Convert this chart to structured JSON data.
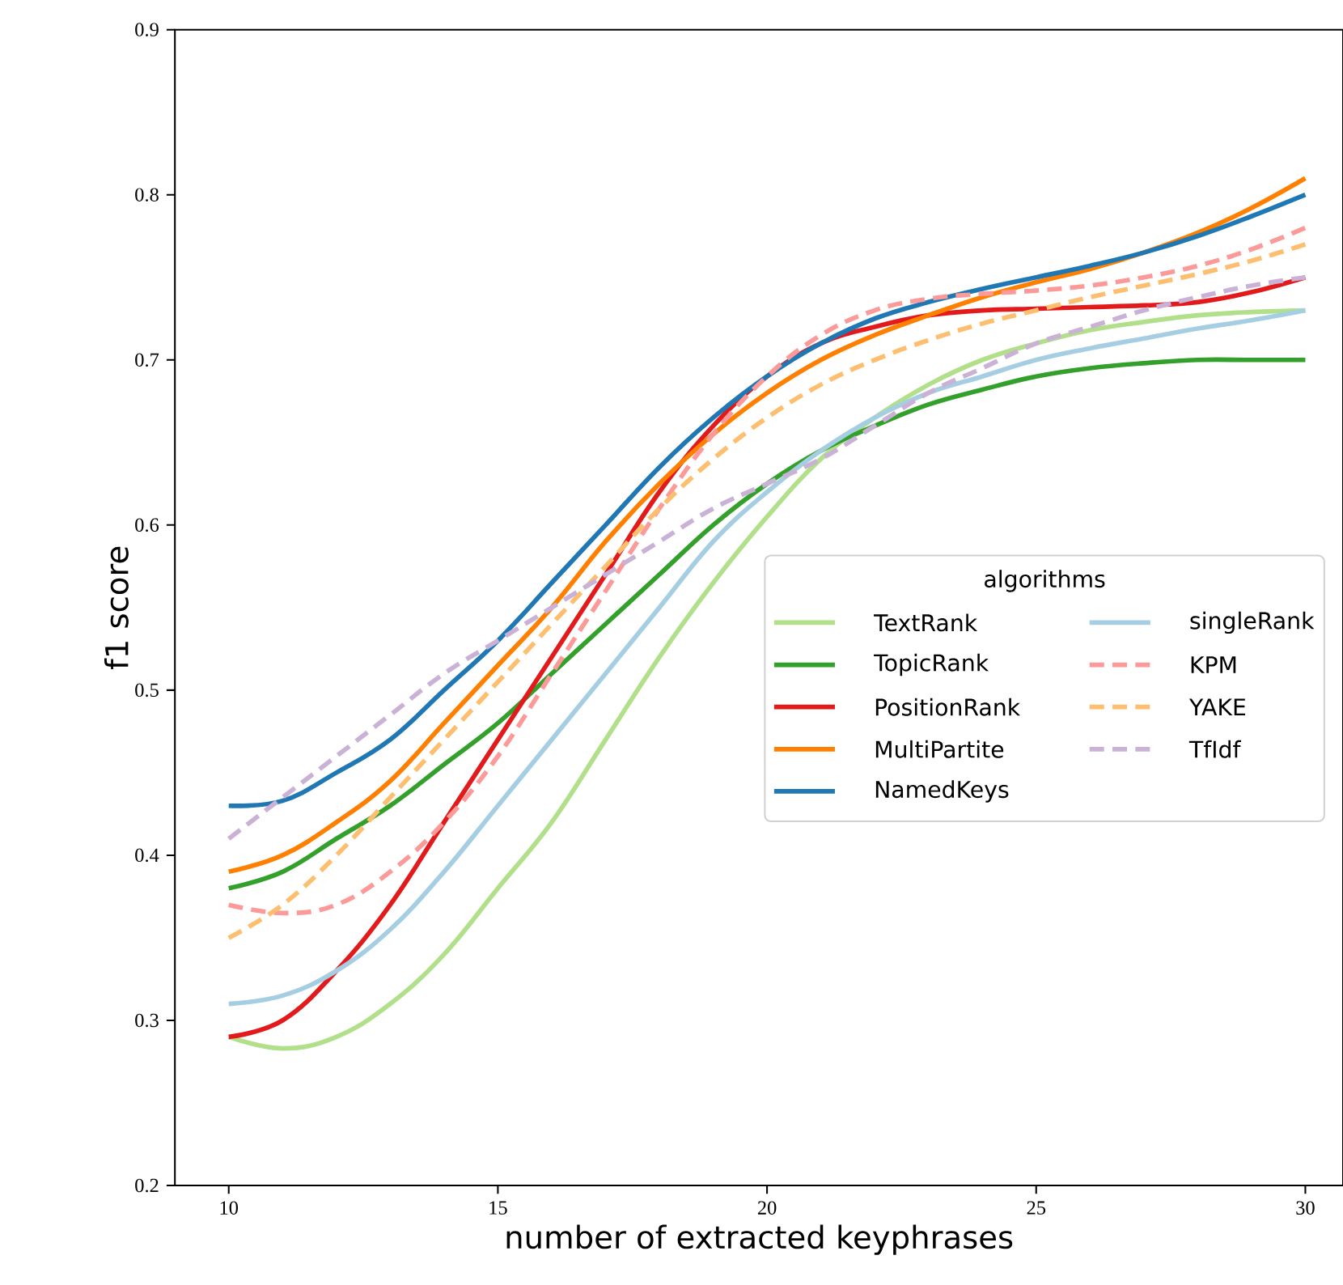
{
  "chart_data": {
    "type": "line",
    "xlabel": "number of extracted keyphrases",
    "ylabel": "f1 score",
    "legend_title": "algorithms",
    "legend": "center right",
    "x": [
      10,
      11,
      12,
      13,
      14,
      15,
      16,
      17,
      18,
      19,
      20,
      21,
      22,
      23,
      24,
      25,
      26,
      27,
      28,
      29,
      30
    ],
    "xlim": [
      9,
      30.7
    ],
    "ylim": [
      0.2,
      0.9
    ],
    "xticks": [
      10,
      15,
      20,
      25,
      30
    ],
    "yticks": [
      0.2,
      0.3,
      0.4,
      0.5,
      0.6,
      0.7,
      0.8,
      0.9
    ],
    "series": [
      {
        "name": "TextRank",
        "color": "#b2df8a",
        "line_style": "solid",
        "values": [
          0.29,
          0.283,
          0.29,
          0.31,
          0.34,
          0.38,
          0.42,
          0.47,
          0.52,
          0.565,
          0.605,
          0.64,
          0.665,
          0.685,
          0.7,
          0.71,
          0.718,
          0.723,
          0.727,
          0.729,
          0.73
        ]
      },
      {
        "name": "TopicRank",
        "color": "#33a02c",
        "line_style": "solid",
        "values": [
          0.38,
          0.39,
          0.41,
          0.43,
          0.455,
          0.48,
          0.51,
          0.54,
          0.57,
          0.6,
          0.625,
          0.645,
          0.66,
          0.673,
          0.682,
          0.69,
          0.695,
          0.698,
          0.7,
          0.7,
          0.7
        ]
      },
      {
        "name": "PositionRank",
        "color": "#e31a1c",
        "line_style": "solid",
        "values": [
          0.29,
          0.3,
          0.33,
          0.37,
          0.42,
          0.47,
          0.52,
          0.57,
          0.62,
          0.66,
          0.69,
          0.71,
          0.72,
          0.727,
          0.73,
          0.731,
          0.732,
          0.733,
          0.735,
          0.741,
          0.75
        ]
      },
      {
        "name": "MultiPartite",
        "color": "#ff7f00",
        "line_style": "solid",
        "values": [
          0.39,
          0.4,
          0.42,
          0.445,
          0.48,
          0.515,
          0.55,
          0.59,
          0.625,
          0.655,
          0.68,
          0.7,
          0.715,
          0.727,
          0.738,
          0.747,
          0.755,
          0.765,
          0.777,
          0.792,
          0.81
        ]
      },
      {
        "name": "NamedKeys",
        "color": "#1f78b4",
        "line_style": "solid",
        "values": [
          0.43,
          0.433,
          0.45,
          0.47,
          0.5,
          0.53,
          0.565,
          0.6,
          0.635,
          0.665,
          0.69,
          0.71,
          0.725,
          0.735,
          0.743,
          0.75,
          0.757,
          0.765,
          0.775,
          0.787,
          0.8
        ]
      },
      {
        "name": "singleRank",
        "color": "#a6cee3",
        "line_style": "solid",
        "values": [
          0.31,
          0.315,
          0.33,
          0.355,
          0.39,
          0.43,
          0.47,
          0.51,
          0.55,
          0.59,
          0.62,
          0.645,
          0.665,
          0.68,
          0.69,
          0.7,
          0.707,
          0.713,
          0.719,
          0.724,
          0.73
        ]
      },
      {
        "name": "KPM",
        "color": "#fb9a99",
        "line_style": "dashed",
        "values": [
          0.37,
          0.365,
          0.37,
          0.39,
          0.42,
          0.46,
          0.51,
          0.56,
          0.61,
          0.655,
          0.69,
          0.715,
          0.73,
          0.737,
          0.74,
          0.742,
          0.745,
          0.75,
          0.757,
          0.767,
          0.78
        ]
      },
      {
        "name": "YAKE",
        "color": "#fdbf6f",
        "line_style": "dashed",
        "values": [
          0.35,
          0.37,
          0.4,
          0.435,
          0.47,
          0.505,
          0.54,
          0.575,
          0.61,
          0.64,
          0.665,
          0.685,
          0.7,
          0.712,
          0.722,
          0.73,
          0.738,
          0.745,
          0.752,
          0.76,
          0.77
        ]
      },
      {
        "name": "TfIdf",
        "color": "#cab2d6",
        "line_style": "dashed",
        "values": [
          0.41,
          0.435,
          0.46,
          0.485,
          0.51,
          0.53,
          0.55,
          0.57,
          0.59,
          0.61,
          0.625,
          0.64,
          0.66,
          0.68,
          0.695,
          0.71,
          0.72,
          0.73,
          0.738,
          0.745,
          0.75
        ]
      }
    ]
  }
}
